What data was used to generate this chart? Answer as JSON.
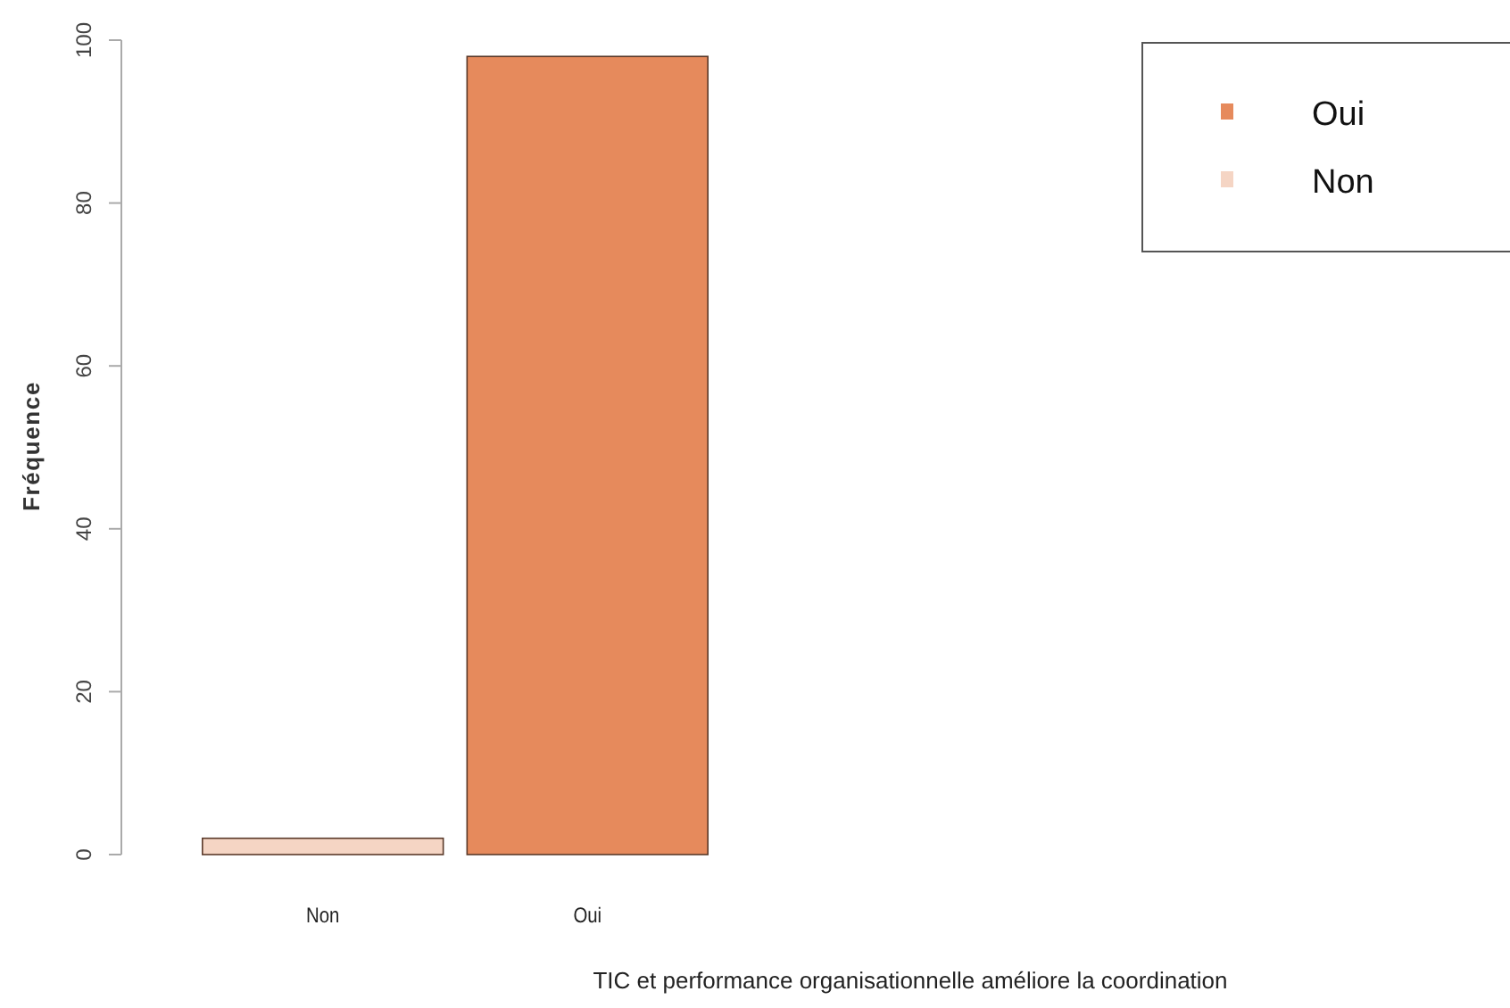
{
  "chart_data": {
    "type": "bar",
    "xlabel": "TIC et performance organisationnelle améliore la coordination",
    "ylabel": "Fréquence",
    "categories": [
      "Non",
      "Oui"
    ],
    "series": [
      {
        "name": "Oui",
        "color": "#e68a5c",
        "values": [
          null,
          98
        ]
      },
      {
        "name": "Non",
        "color": "#f5d5c4",
        "values": [
          2,
          null
        ]
      }
    ],
    "ylim": [
      0,
      100
    ],
    "yticks": [
      0,
      20,
      40,
      60,
      80,
      100
    ],
    "grid": false,
    "legend": "top right"
  }
}
